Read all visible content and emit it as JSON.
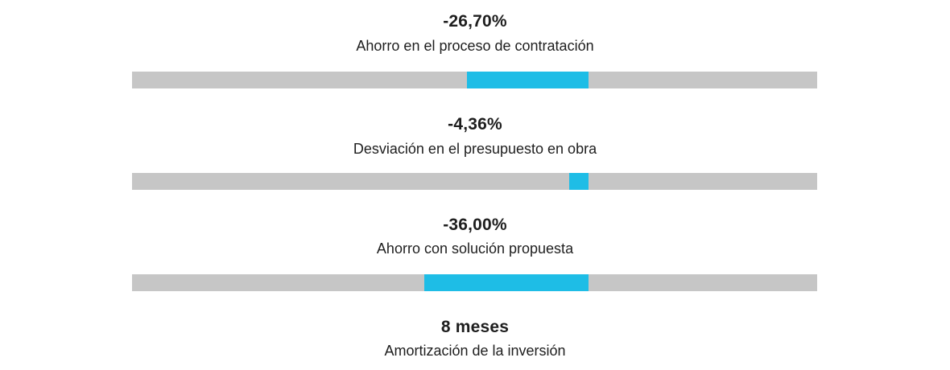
{
  "colors": {
    "track": "#c6c6c6",
    "fill": "#1ebde6",
    "text": "#1e1e1e"
  },
  "chart_data": {
    "type": "bar",
    "orientation": "horizontal",
    "scale_min_percent": -100,
    "scale_max_percent": 50,
    "metrics": [
      {
        "value_text": "-26,70%",
        "label": "Ahorro en el proceso de contratación",
        "value": -26.7
      },
      {
        "value_text": "-4,36%",
        "label": "Desviación en el presupuesto en obra",
        "value": -4.36
      },
      {
        "value_text": "-36,00%",
        "label": "Ahorro con solución propuesta",
        "value": -36.0
      },
      {
        "value_text": "8 meses",
        "label": "Amortización de la inversión",
        "value": 8
      }
    ]
  }
}
